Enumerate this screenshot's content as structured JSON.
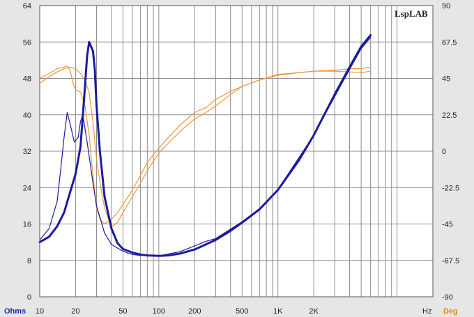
{
  "brand": "LspLAB",
  "left_unit": "Ohms",
  "right_unit": "Deg",
  "x_unit": "Hz",
  "colors": {
    "background": "#e6e6e6",
    "plot_bg": "#ffffff",
    "grid": "#8c8c8c",
    "impedance": "#1a1aa0",
    "phase": "#f0963c",
    "left_unit": "#1a2a9a",
    "right_unit": "#e8861a"
  },
  "chart_data": {
    "type": "line",
    "x_scale": "log",
    "xlim": [
      10,
      20000
    ],
    "ylim_left": [
      0,
      64
    ],
    "ylim_right": [
      -90,
      90
    ],
    "grid": true,
    "x_tick_labels": [
      {
        "value": 10,
        "label": "10"
      },
      {
        "value": 20,
        "label": "20"
      },
      {
        "value": 50,
        "label": "50"
      },
      {
        "value": 100,
        "label": "100"
      },
      {
        "value": 200,
        "label": "200"
      },
      {
        "value": 500,
        "label": "500"
      },
      {
        "value": 1000,
        "label": "1K"
      },
      {
        "value": 2000,
        "label": "2K"
      }
    ],
    "y_left_ticks": [
      0,
      8,
      16,
      24,
      32,
      40,
      48,
      56,
      64
    ],
    "y_right_ticks": [
      -90,
      -67.5,
      -45,
      -22.5,
      0,
      22.5,
      45,
      67.5,
      90
    ],
    "y_right_tick_labels": [
      "-90",
      "-67.5",
      "-45",
      "-22.5",
      "0",
      "22.5",
      "45",
      "67.5",
      "90"
    ],
    "series": [
      {
        "axis": "left",
        "style": "thick",
        "color": "#1a1aa0",
        "points": [
          [
            10,
            12
          ],
          [
            12,
            13.2
          ],
          [
            14,
            15.5
          ],
          [
            16,
            18.5
          ],
          [
            18,
            23
          ],
          [
            20,
            27
          ],
          [
            22,
            33
          ],
          [
            23.5,
            43
          ],
          [
            25,
            53
          ],
          [
            26,
            56
          ],
          [
            28,
            54
          ],
          [
            29,
            50
          ],
          [
            30,
            42
          ],
          [
            32,
            32
          ],
          [
            35,
            22
          ],
          [
            40,
            15
          ],
          [
            45,
            11.8
          ],
          [
            50,
            10.5
          ],
          [
            60,
            9.7
          ],
          [
            70,
            9.3
          ],
          [
            80,
            9.1
          ],
          [
            100,
            9.0
          ],
          [
            120,
            9.1
          ],
          [
            150,
            9.5
          ],
          [
            200,
            10.4
          ],
          [
            300,
            12.5
          ],
          [
            400,
            14.5
          ],
          [
            500,
            16.3
          ],
          [
            700,
            19.2
          ],
          [
            1000,
            23.5
          ],
          [
            1500,
            30
          ],
          [
            2000,
            35.5
          ],
          [
            3000,
            44.5
          ],
          [
            4000,
            50.5
          ],
          [
            5000,
            55
          ],
          [
            6000,
            57.5
          ]
        ]
      },
      {
        "axis": "left",
        "style": "thin",
        "color": "#1a1aa0",
        "points": [
          [
            10,
            12.5
          ],
          [
            12,
            15
          ],
          [
            14,
            21
          ],
          [
            15,
            28
          ],
          [
            16,
            35
          ],
          [
            17,
            40.5
          ],
          [
            18,
            38
          ],
          [
            19.5,
            34
          ],
          [
            21,
            35
          ],
          [
            22,
            38.5
          ],
          [
            23,
            40
          ],
          [
            25,
            34
          ],
          [
            28,
            25
          ],
          [
            30,
            20
          ],
          [
            35,
            14
          ],
          [
            40,
            11.5
          ],
          [
            50,
            10
          ],
          [
            60,
            9.3
          ],
          [
            70,
            9.1
          ],
          [
            100,
            9.0
          ],
          [
            150,
            9.9
          ],
          [
            200,
            11.2
          ],
          [
            250,
            12.2
          ],
          [
            300,
            12.8
          ],
          [
            500,
            16.5
          ],
          [
            700,
            19.4
          ],
          [
            1000,
            23.6
          ],
          [
            2000,
            35.5
          ],
          [
            3000,
            44
          ],
          [
            4000,
            50
          ],
          [
            5000,
            54.5
          ],
          [
            6000,
            57
          ]
        ]
      },
      {
        "axis": "right",
        "style": "thin",
        "color": "#f0963c",
        "points": [
          [
            10,
            45
          ],
          [
            12,
            48
          ],
          [
            14,
            51
          ],
          [
            16,
            52
          ],
          [
            17,
            52.5
          ],
          [
            18,
            50
          ],
          [
            19,
            42
          ],
          [
            20,
            38
          ],
          [
            22,
            36.5
          ],
          [
            24,
            28
          ],
          [
            26,
            10
          ],
          [
            28,
            -15
          ],
          [
            30,
            -35
          ],
          [
            32,
            -42
          ],
          [
            35,
            -45
          ],
          [
            40,
            -42
          ],
          [
            45,
            -38
          ],
          [
            50,
            -33
          ],
          [
            60,
            -24
          ],
          [
            70,
            -15
          ],
          [
            80,
            -7
          ],
          [
            100,
            2
          ],
          [
            150,
            16
          ],
          [
            200,
            24
          ],
          [
            250,
            27
          ],
          [
            300,
            32
          ],
          [
            400,
            37
          ],
          [
            500,
            40
          ],
          [
            700,
            44
          ],
          [
            1000,
            47
          ],
          [
            1500,
            48.5
          ],
          [
            2000,
            49.5
          ],
          [
            3000,
            50
          ],
          [
            4000,
            51
          ],
          [
            5000,
            51
          ],
          [
            6000,
            52
          ]
        ]
      },
      {
        "axis": "right",
        "style": "thin",
        "color": "#f0963c",
        "points": [
          [
            10,
            42
          ],
          [
            12,
            46
          ],
          [
            14,
            49
          ],
          [
            16,
            51
          ],
          [
            18,
            52
          ],
          [
            20,
            51
          ],
          [
            22,
            48
          ],
          [
            24,
            44
          ],
          [
            26,
            36
          ],
          [
            28,
            18
          ],
          [
            30,
            -5
          ],
          [
            33,
            -25
          ],
          [
            35,
            -35
          ],
          [
            40,
            -47
          ],
          [
            45,
            -44
          ],
          [
            50,
            -38
          ],
          [
            60,
            -28
          ],
          [
            70,
            -20
          ],
          [
            80,
            -12
          ],
          [
            100,
            -1
          ],
          [
            150,
            12
          ],
          [
            200,
            20
          ],
          [
            250,
            24
          ],
          [
            300,
            28
          ],
          [
            400,
            35
          ],
          [
            500,
            40
          ],
          [
            700,
            44
          ],
          [
            1000,
            47.5
          ],
          [
            1500,
            48.5
          ],
          [
            2000,
            49.5
          ],
          [
            3000,
            49.5
          ],
          [
            4000,
            49
          ],
          [
            5000,
            48.5
          ],
          [
            6000,
            49.5
          ]
        ]
      }
    ]
  }
}
